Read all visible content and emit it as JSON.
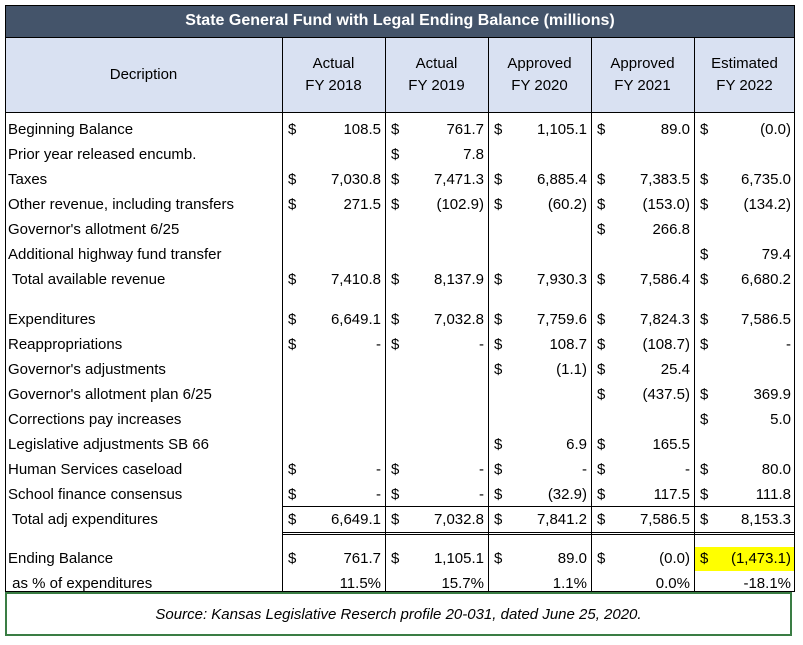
{
  "title": "State General Fund with Legal Ending Balance (millions)",
  "columns": [
    {
      "line1": "Decription",
      "line2": ""
    },
    {
      "line1": "Actual",
      "line2": "FY 2018"
    },
    {
      "line1": "Actual",
      "line2": "FY 2019"
    },
    {
      "line1": "Approved",
      "line2": "FY 2020"
    },
    {
      "line1": "Approved",
      "line2": "FY 2021"
    },
    {
      "line1": "Estimated",
      "line2": "FY 2022"
    }
  ],
  "rows": [
    {
      "label": "Beginning Balance",
      "cells": [
        [
          "$",
          "108.5"
        ],
        [
          "$",
          "761.7"
        ],
        [
          "$",
          "1,105.1"
        ],
        [
          "$",
          "89.0"
        ],
        [
          "$",
          "(0.0)"
        ]
      ]
    },
    {
      "label": "Prior year released encumb.",
      "cells": [
        [
          "",
          ""
        ],
        [
          "$",
          "7.8"
        ],
        [
          "",
          ""
        ],
        [
          "",
          ""
        ],
        [
          "",
          ""
        ]
      ]
    },
    {
      "label": "Taxes",
      "cells": [
        [
          "$",
          "7,030.8"
        ],
        [
          "$",
          "7,471.3"
        ],
        [
          "$",
          "6,885.4"
        ],
        [
          "$",
          "7,383.5"
        ],
        [
          "$",
          "6,735.0"
        ]
      ]
    },
    {
      "label": "Other revenue, including transfers",
      "cells": [
        [
          "$",
          "271.5"
        ],
        [
          "$",
          "(102.9)"
        ],
        [
          "$",
          "(60.2)"
        ],
        [
          "$",
          "(153.0)"
        ],
        [
          "$",
          "(134.2)"
        ]
      ]
    },
    {
      "label": "Governor's allotment 6/25",
      "cells": [
        [
          "",
          ""
        ],
        [
          "",
          ""
        ],
        [
          "",
          ""
        ],
        [
          "$",
          "266.8"
        ],
        [
          "",
          ""
        ]
      ]
    },
    {
      "label": "Additional highway fund transfer",
      "cells": [
        [
          "",
          ""
        ],
        [
          "",
          ""
        ],
        [
          "",
          ""
        ],
        [
          "",
          ""
        ],
        [
          "$",
          "79.4"
        ]
      ]
    },
    {
      "label": " Total available revenue",
      "cells": [
        [
          "$",
          "7,410.8"
        ],
        [
          "$",
          "8,137.9"
        ],
        [
          "$",
          "7,930.3"
        ],
        [
          "$",
          "7,586.4"
        ],
        [
          "$",
          "6,680.2"
        ]
      ]
    },
    {
      "label": "Expenditures",
      "cells": [
        [
          "$",
          "6,649.1"
        ],
        [
          "$",
          "7,032.8"
        ],
        [
          "$",
          "7,759.6"
        ],
        [
          "$",
          "7,824.3"
        ],
        [
          "$",
          "7,586.5"
        ]
      ]
    },
    {
      "label": "Reappropriations",
      "cells": [
        [
          "$",
          "-"
        ],
        [
          "$",
          "-"
        ],
        [
          "$",
          "108.7"
        ],
        [
          "$",
          "(108.7)"
        ],
        [
          "$",
          "-"
        ]
      ]
    },
    {
      "label": "Governor's adjustments",
      "cells": [
        [
          "",
          ""
        ],
        [
          "",
          ""
        ],
        [
          "$",
          "(1.1)"
        ],
        [
          "$",
          "25.4"
        ],
        [
          "",
          ""
        ]
      ]
    },
    {
      "label": "Governor's allotment plan 6/25",
      "cells": [
        [
          "",
          ""
        ],
        [
          "",
          ""
        ],
        [
          "",
          ""
        ],
        [
          "$",
          "(437.5)"
        ],
        [
          "$",
          "369.9"
        ]
      ]
    },
    {
      "label": "Corrections pay increases",
      "cells": [
        [
          "",
          ""
        ],
        [
          "",
          ""
        ],
        [
          "",
          ""
        ],
        [
          "",
          ""
        ],
        [
          "$",
          "5.0"
        ]
      ]
    },
    {
      "label": "Legislative adjustments SB 66",
      "cells": [
        [
          "",
          ""
        ],
        [
          "",
          ""
        ],
        [
          "$",
          "6.9"
        ],
        [
          "$",
          "165.5"
        ],
        [
          "",
          ""
        ]
      ]
    },
    {
      "label": "Human Services caseload",
      "cells": [
        [
          "$",
          "-"
        ],
        [
          "$",
          "-"
        ],
        [
          "$",
          "-"
        ],
        [
          "$",
          "-"
        ],
        [
          "$",
          "80.0"
        ]
      ]
    },
    {
      "label": "School finance consensus",
      "cells": [
        [
          "$",
          "-"
        ],
        [
          "$",
          "-"
        ],
        [
          "$",
          "(32.9)"
        ],
        [
          "$",
          "117.5"
        ],
        [
          "$",
          "111.8"
        ]
      ]
    },
    {
      "label": " Total adj expenditures",
      "cells": [
        [
          "$",
          "6,649.1"
        ],
        [
          "$",
          "7,032.8"
        ],
        [
          "$",
          "7,841.2"
        ],
        [
          "$",
          "7,586.5"
        ],
        [
          "$",
          "8,153.3"
        ]
      ]
    },
    {
      "label": "Ending Balance",
      "cells": [
        [
          "$",
          "761.7"
        ],
        [
          "$",
          "1,105.1"
        ],
        [
          "$",
          "89.0"
        ],
        [
          "$",
          "(0.0)"
        ],
        [
          "$",
          "(1,473.1)"
        ]
      ]
    },
    {
      "label": " as % of expenditures",
      "cells": [
        [
          "",
          "11.5%"
        ],
        [
          "",
          "15.7%"
        ],
        [
          "",
          "1.1%"
        ],
        [
          "",
          "0.0%"
        ],
        [
          "",
          "-18.1%"
        ]
      ]
    }
  ],
  "source": "Source: Kansas Legislative Reserch profile 20-031, dated June 25, 2020.",
  "colors": {
    "title_bg": "#44546a",
    "header_bg": "#d9e1f2",
    "highlight": "#ffff00",
    "source_border": "#3a7d44"
  }
}
